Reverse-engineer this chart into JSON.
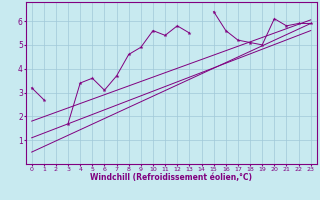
{
  "xlabel": "Windchill (Refroidissement éolien,°C)",
  "bg_color": "#c8eaf0",
  "grid_color": "#a0c8d8",
  "line_color": "#800080",
  "x_data": [
    0,
    1,
    2,
    3,
    4,
    5,
    6,
    7,
    8,
    9,
    10,
    11,
    12,
    13,
    14,
    15,
    16,
    17,
    18,
    19,
    20,
    21,
    22,
    23
  ],
  "y_data": [
    3.2,
    2.7,
    null,
    1.7,
    3.4,
    3.6,
    3.1,
    3.7,
    4.6,
    4.9,
    5.6,
    5.4,
    5.8,
    5.5,
    null,
    6.4,
    5.6,
    5.2,
    5.1,
    5.0,
    6.1,
    5.8,
    5.9,
    5.9
  ],
  "reg_line1_x": [
    0,
    23
  ],
  "reg_line1_y": [
    0.5,
    5.9
  ],
  "reg_line2_x": [
    0,
    23
  ],
  "reg_line2_y": [
    1.1,
    5.6
  ],
  "reg_line3_x": [
    0,
    23
  ],
  "reg_line3_y": [
    1.8,
    6.05
  ],
  "xlim": [
    -0.5,
    23.5
  ],
  "ylim": [
    0,
    6.8
  ],
  "yticks": [
    1,
    2,
    3,
    4,
    5,
    6
  ],
  "xticks": [
    0,
    1,
    2,
    3,
    4,
    5,
    6,
    7,
    8,
    9,
    10,
    11,
    12,
    13,
    14,
    15,
    16,
    17,
    18,
    19,
    20,
    21,
    22,
    23
  ],
  "tick_fontsize": 4.5,
  "xlabel_fontsize": 5.5
}
